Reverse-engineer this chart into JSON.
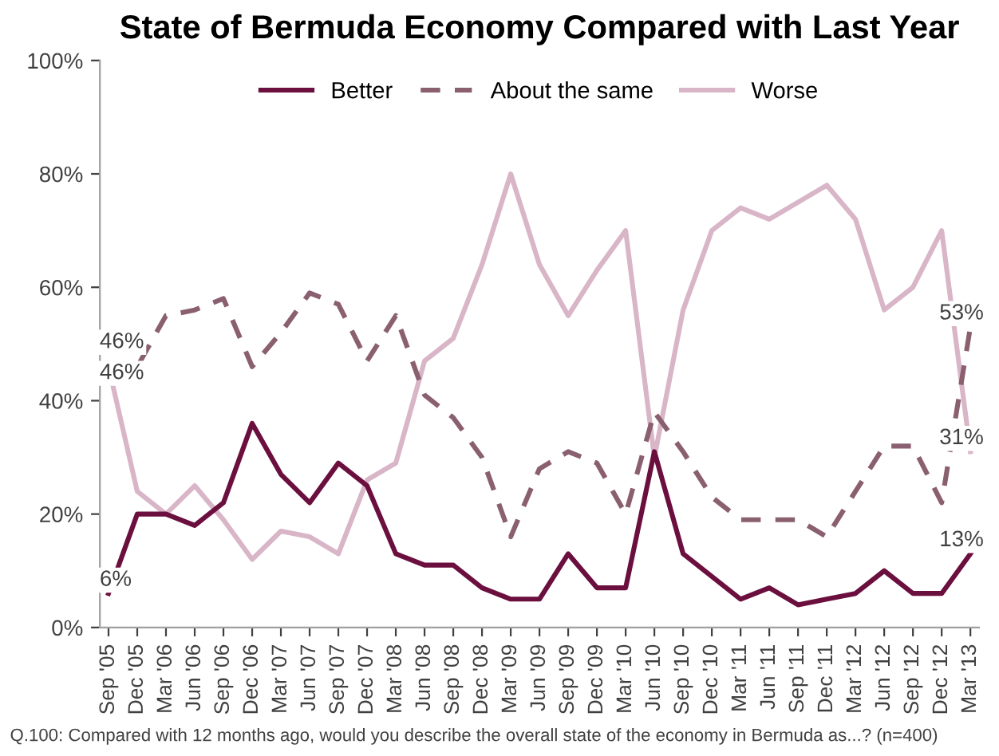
{
  "chart_data": {
    "type": "line",
    "title": "State of Bermuda Economy Compared with Last Year",
    "categories": [
      "Sep '05",
      "Dec '05",
      "Mar '06",
      "Jun '06",
      "Sep '06",
      "Dec '06",
      "Mar '07",
      "Jun '07",
      "Sep '07",
      "Dec '07",
      "Mar '08",
      "Jun '08",
      "Sep '08",
      "Dec '08",
      "Mar '09",
      "Jun '09",
      "Sep '09",
      "Dec '09",
      "Mar '10",
      "Jun '10",
      "Sep '10",
      "Dec '10",
      "Mar '11",
      "Jun '11",
      "Sep '11",
      "Dec '11",
      "Mar '12",
      "Jun '12",
      "Sep '12",
      "Dec '12",
      "Mar '13"
    ],
    "series": [
      {
        "name": "Better",
        "color": "#6b0f3f",
        "line_style": "solid",
        "values": [
          6,
          20,
          20,
          18,
          22,
          36,
          27,
          22,
          29,
          25,
          13,
          11,
          11,
          7,
          5,
          5,
          13,
          7,
          7,
          31,
          13,
          9,
          5,
          7,
          4,
          5,
          6,
          10,
          6,
          6,
          13
        ],
        "value_labels": [
          "6%",
          null,
          null,
          null,
          null,
          null,
          null,
          null,
          null,
          null,
          null,
          null,
          null,
          null,
          null,
          null,
          null,
          null,
          null,
          null,
          null,
          null,
          null,
          null,
          null,
          null,
          null,
          null,
          null,
          null,
          "13%"
        ]
      },
      {
        "name": "About the same",
        "color": "#8a6070",
        "line_style": "dashed",
        "values": [
          46,
          46,
          55,
          56,
          58,
          46,
          52,
          59,
          57,
          47,
          55,
          41,
          37,
          30,
          16,
          28,
          31,
          29,
          20,
          38,
          31,
          23,
          19,
          19,
          19,
          16,
          24,
          32,
          32,
          22,
          53
        ],
        "value_labels": [
          "46%",
          null,
          null,
          null,
          null,
          null,
          null,
          null,
          null,
          null,
          null,
          null,
          null,
          null,
          null,
          null,
          null,
          null,
          null,
          null,
          null,
          null,
          null,
          null,
          null,
          null,
          null,
          null,
          null,
          null,
          "53%"
        ]
      },
      {
        "name": "Worse",
        "color": "#d9b5c8",
        "line_style": "solid",
        "values": [
          46,
          24,
          20,
          25,
          19,
          12,
          17,
          16,
          13,
          26,
          29,
          47,
          51,
          64,
          80,
          64,
          55,
          63,
          70,
          30,
          56,
          70,
          74,
          72,
          75,
          78,
          72,
          56,
          60,
          70,
          31
        ],
        "value_labels": [
          "46%",
          null,
          null,
          null,
          null,
          null,
          null,
          null,
          null,
          null,
          null,
          null,
          null,
          null,
          null,
          null,
          null,
          null,
          null,
          null,
          null,
          null,
          null,
          null,
          null,
          null,
          null,
          null,
          null,
          null,
          "31%"
        ]
      }
    ],
    "ylim": [
      0,
      100
    ],
    "yticks": [
      {
        "value": 0,
        "label": "0%"
      },
      {
        "value": 20,
        "label": "20%"
      },
      {
        "value": 40,
        "label": "40%"
      },
      {
        "value": 60,
        "label": "60%"
      },
      {
        "value": 80,
        "label": "80%"
      },
      {
        "value": 100,
        "label": "100%"
      }
    ],
    "grid": false,
    "legend": "top",
    "marker": "none",
    "annotations": [
      "Q.100: Compared with 12 months ago, would you describe the overall state of the economy in Bermuda as...? (n=400)"
    ]
  }
}
